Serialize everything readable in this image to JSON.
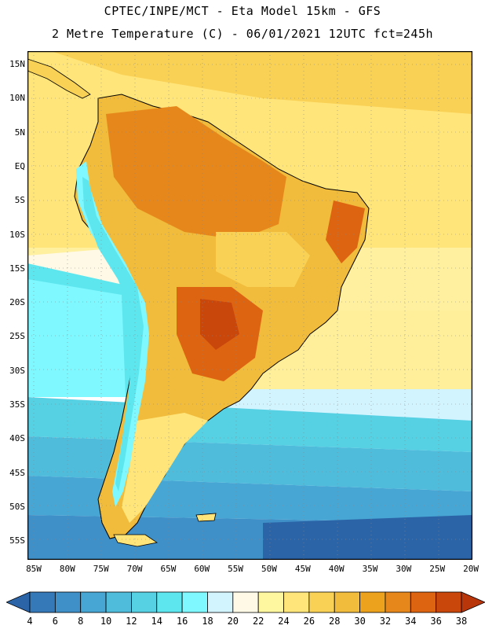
{
  "header": {
    "line1": "CPTEC/INPE/MCT -  Eta Model 15km - GFS",
    "line2": "2 Metre Temperature (C) - 06/01/2021 12UTC fct=245h"
  },
  "map": {
    "lat_labels": [
      "15N",
      "10N",
      "5N",
      "EQ",
      "5S",
      "10S",
      "15S",
      "20S",
      "25S",
      "30S",
      "35S",
      "40S",
      "45S",
      "50S",
      "55S"
    ],
    "lon_labels": [
      "85W",
      "80W",
      "75W",
      "70W",
      "65W",
      "60W",
      "55W",
      "50W",
      "45W",
      "40W",
      "35W",
      "30W",
      "25W",
      "20W"
    ]
  },
  "colorbar": {
    "labels": [
      "4",
      "6",
      "8",
      "10",
      "12",
      "14",
      "16",
      "18",
      "20",
      "22",
      "24",
      "26",
      "28",
      "30",
      "32",
      "34",
      "36",
      "38"
    ],
    "colors": [
      "#2c64a8",
      "#3679b9",
      "#3f8fc8",
      "#47a6d3",
      "#4fbcdc",
      "#56d0e3",
      "#5ee6ef",
      "#7ff8ff",
      "#d2f4ff",
      "#fff9e6",
      "#fff6a0",
      "#ffe57a",
      "#f9d155",
      "#f1bb3c",
      "#eda21e",
      "#e6871b",
      "#dd6411",
      "#c9470b",
      "#b8360a"
    ]
  }
}
